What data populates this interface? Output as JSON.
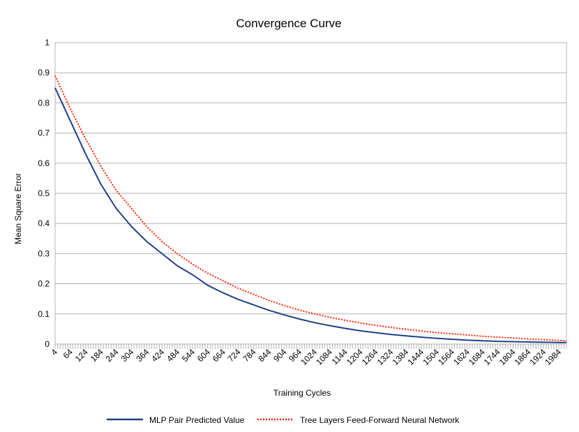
{
  "chart_data": {
    "type": "line",
    "title": "Convergence Curve",
    "xlabel": "Training Cycles",
    "ylabel": "Mean Square Error",
    "ylim": [
      0,
      1
    ],
    "yticks": [
      "0",
      "0.1",
      "0.2",
      "0.3",
      "0.4",
      "0.5",
      "0.6",
      "0.7",
      "0.8",
      "0.9",
      "1"
    ],
    "xlim": [
      4,
      2014
    ],
    "xticks": [
      "4",
      "64",
      "124",
      "184",
      "244",
      "304",
      "364",
      "424",
      "484",
      "544",
      "604",
      "664",
      "724",
      "784",
      "844",
      "904",
      "964",
      "1024",
      "1084",
      "1144",
      "1204",
      "1264",
      "1324",
      "1384",
      "1444",
      "1504",
      "1564",
      "1624",
      "1684",
      "1744",
      "1804",
      "1864",
      "1924",
      "1984"
    ],
    "grid": "horizontal",
    "legend": "bottom",
    "series": [
      {
        "name": "MLP Pair Predicted Value",
        "color": "#1f3f86",
        "style": "solid",
        "x": [
          4,
          64,
          124,
          184,
          244,
          304,
          364,
          424,
          484,
          544,
          604,
          664,
          724,
          784,
          844,
          904,
          964,
          1024,
          1084,
          1144,
          1204,
          1264,
          1324,
          1384,
          1444,
          1504,
          1564,
          1624,
          1684,
          1744,
          1804,
          1864,
          1924,
          1984,
          2014
        ],
        "values": [
          0.85,
          0.74,
          0.63,
          0.53,
          0.45,
          0.39,
          0.34,
          0.3,
          0.26,
          0.23,
          0.195,
          0.17,
          0.148,
          0.13,
          0.112,
          0.097,
          0.083,
          0.071,
          0.061,
          0.052,
          0.044,
          0.038,
          0.032,
          0.027,
          0.023,
          0.019,
          0.016,
          0.013,
          0.011,
          0.009,
          0.008,
          0.007,
          0.006,
          0.005,
          0.005
        ]
      },
      {
        "name": "Tree Layers Feed-Forward Neural Network",
        "color": "#ff2200",
        "style": "dotted",
        "x": [
          4,
          64,
          124,
          184,
          244,
          304,
          364,
          424,
          484,
          544,
          604,
          664,
          724,
          784,
          844,
          904,
          964,
          1024,
          1084,
          1144,
          1204,
          1264,
          1324,
          1384,
          1444,
          1504,
          1564,
          1624,
          1684,
          1744,
          1804,
          1864,
          1924,
          1984,
          2014
        ],
        "values": [
          0.89,
          0.78,
          0.68,
          0.59,
          0.51,
          0.45,
          0.39,
          0.34,
          0.3,
          0.265,
          0.235,
          0.21,
          0.185,
          0.165,
          0.145,
          0.128,
          0.113,
          0.1,
          0.089,
          0.079,
          0.07,
          0.062,
          0.055,
          0.049,
          0.043,
          0.038,
          0.034,
          0.03,
          0.026,
          0.023,
          0.02,
          0.017,
          0.015,
          0.012,
          0.011
        ]
      }
    ]
  }
}
